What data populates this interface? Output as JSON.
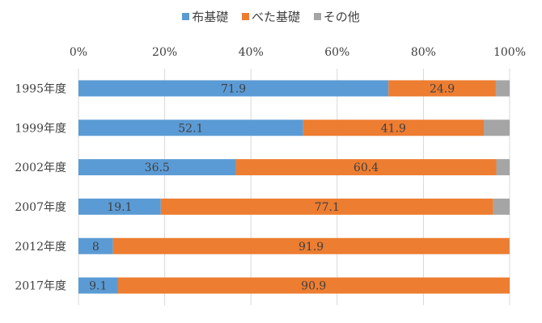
{
  "chart_data": {
    "type": "bar",
    "orientation": "horizontal",
    "stacked": "percent",
    "categories": [
      "1995年度",
      "1999年度",
      "2002年度",
      "2007年度",
      "2012年度",
      "2017年度"
    ],
    "series": [
      {
        "name": "布基礎",
        "color": "#5B9BD5",
        "values": [
          71.9,
          52.1,
          36.5,
          19.1,
          8,
          9.1
        ],
        "labels": [
          "71.9",
          "52.1",
          "36.5",
          "19.1",
          "8",
          "9.1"
        ]
      },
      {
        "name": "べた基礎",
        "color": "#ED7D31",
        "values": [
          24.9,
          41.9,
          60.4,
          77.1,
          91.9,
          90.9
        ],
        "labels": [
          "24.9",
          "41.9",
          "60.4",
          "77.1",
          "91.9",
          "90.9"
        ]
      },
      {
        "name": "その他",
        "color": "#A5A5A5",
        "values": [
          3.2,
          6.0,
          3.1,
          3.8,
          0.1,
          0
        ],
        "labels": [
          "",
          "",
          "",
          "",
          "",
          ""
        ]
      }
    ],
    "x_ticks": [
      "0%",
      "20%",
      "40%",
      "60%",
      "80%",
      "100%"
    ],
    "xlim": [
      0,
      100
    ],
    "legend_position": "top",
    "xaxis_position": "top",
    "grid": true
  }
}
